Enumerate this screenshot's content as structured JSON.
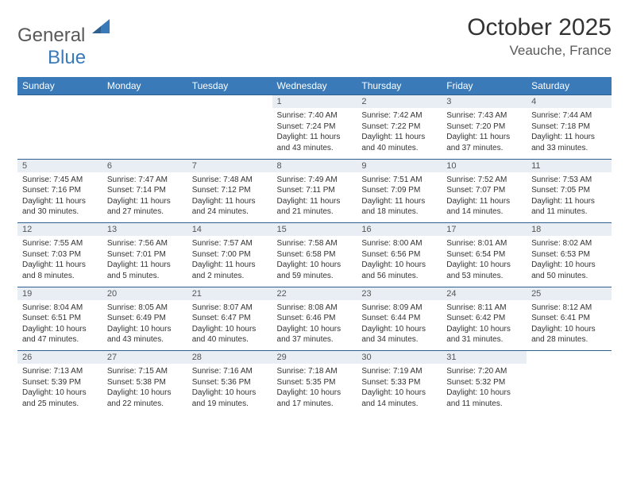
{
  "logo": {
    "text_general": "General",
    "text_blue": "Blue"
  },
  "title": "October 2025",
  "location": "Veauche, France",
  "header_bg": "#3a7ab8",
  "daynum_bg": "#e8eef4",
  "border_color": "#2f5f8f",
  "weekdays": [
    "Sunday",
    "Monday",
    "Tuesday",
    "Wednesday",
    "Thursday",
    "Friday",
    "Saturday"
  ],
  "weeks": [
    {
      "nums": [
        "",
        "",
        "",
        "1",
        "2",
        "3",
        "4"
      ],
      "cells": [
        null,
        null,
        null,
        {
          "sunrise": "Sunrise: 7:40 AM",
          "sunset": "Sunset: 7:24 PM",
          "day1": "Daylight: 11 hours",
          "day2": "and 43 minutes."
        },
        {
          "sunrise": "Sunrise: 7:42 AM",
          "sunset": "Sunset: 7:22 PM",
          "day1": "Daylight: 11 hours",
          "day2": "and 40 minutes."
        },
        {
          "sunrise": "Sunrise: 7:43 AM",
          "sunset": "Sunset: 7:20 PM",
          "day1": "Daylight: 11 hours",
          "day2": "and 37 minutes."
        },
        {
          "sunrise": "Sunrise: 7:44 AM",
          "sunset": "Sunset: 7:18 PM",
          "day1": "Daylight: 11 hours",
          "day2": "and 33 minutes."
        }
      ]
    },
    {
      "nums": [
        "5",
        "6",
        "7",
        "8",
        "9",
        "10",
        "11"
      ],
      "cells": [
        {
          "sunrise": "Sunrise: 7:45 AM",
          "sunset": "Sunset: 7:16 PM",
          "day1": "Daylight: 11 hours",
          "day2": "and 30 minutes."
        },
        {
          "sunrise": "Sunrise: 7:47 AM",
          "sunset": "Sunset: 7:14 PM",
          "day1": "Daylight: 11 hours",
          "day2": "and 27 minutes."
        },
        {
          "sunrise": "Sunrise: 7:48 AM",
          "sunset": "Sunset: 7:12 PM",
          "day1": "Daylight: 11 hours",
          "day2": "and 24 minutes."
        },
        {
          "sunrise": "Sunrise: 7:49 AM",
          "sunset": "Sunset: 7:11 PM",
          "day1": "Daylight: 11 hours",
          "day2": "and 21 minutes."
        },
        {
          "sunrise": "Sunrise: 7:51 AM",
          "sunset": "Sunset: 7:09 PM",
          "day1": "Daylight: 11 hours",
          "day2": "and 18 minutes."
        },
        {
          "sunrise": "Sunrise: 7:52 AM",
          "sunset": "Sunset: 7:07 PM",
          "day1": "Daylight: 11 hours",
          "day2": "and 14 minutes."
        },
        {
          "sunrise": "Sunrise: 7:53 AM",
          "sunset": "Sunset: 7:05 PM",
          "day1": "Daylight: 11 hours",
          "day2": "and 11 minutes."
        }
      ]
    },
    {
      "nums": [
        "12",
        "13",
        "14",
        "15",
        "16",
        "17",
        "18"
      ],
      "cells": [
        {
          "sunrise": "Sunrise: 7:55 AM",
          "sunset": "Sunset: 7:03 PM",
          "day1": "Daylight: 11 hours",
          "day2": "and 8 minutes."
        },
        {
          "sunrise": "Sunrise: 7:56 AM",
          "sunset": "Sunset: 7:01 PM",
          "day1": "Daylight: 11 hours",
          "day2": "and 5 minutes."
        },
        {
          "sunrise": "Sunrise: 7:57 AM",
          "sunset": "Sunset: 7:00 PM",
          "day1": "Daylight: 11 hours",
          "day2": "and 2 minutes."
        },
        {
          "sunrise": "Sunrise: 7:58 AM",
          "sunset": "Sunset: 6:58 PM",
          "day1": "Daylight: 10 hours",
          "day2": "and 59 minutes."
        },
        {
          "sunrise": "Sunrise: 8:00 AM",
          "sunset": "Sunset: 6:56 PM",
          "day1": "Daylight: 10 hours",
          "day2": "and 56 minutes."
        },
        {
          "sunrise": "Sunrise: 8:01 AM",
          "sunset": "Sunset: 6:54 PM",
          "day1": "Daylight: 10 hours",
          "day2": "and 53 minutes."
        },
        {
          "sunrise": "Sunrise: 8:02 AM",
          "sunset": "Sunset: 6:53 PM",
          "day1": "Daylight: 10 hours",
          "day2": "and 50 minutes."
        }
      ]
    },
    {
      "nums": [
        "19",
        "20",
        "21",
        "22",
        "23",
        "24",
        "25"
      ],
      "cells": [
        {
          "sunrise": "Sunrise: 8:04 AM",
          "sunset": "Sunset: 6:51 PM",
          "day1": "Daylight: 10 hours",
          "day2": "and 47 minutes."
        },
        {
          "sunrise": "Sunrise: 8:05 AM",
          "sunset": "Sunset: 6:49 PM",
          "day1": "Daylight: 10 hours",
          "day2": "and 43 minutes."
        },
        {
          "sunrise": "Sunrise: 8:07 AM",
          "sunset": "Sunset: 6:47 PM",
          "day1": "Daylight: 10 hours",
          "day2": "and 40 minutes."
        },
        {
          "sunrise": "Sunrise: 8:08 AM",
          "sunset": "Sunset: 6:46 PM",
          "day1": "Daylight: 10 hours",
          "day2": "and 37 minutes."
        },
        {
          "sunrise": "Sunrise: 8:09 AM",
          "sunset": "Sunset: 6:44 PM",
          "day1": "Daylight: 10 hours",
          "day2": "and 34 minutes."
        },
        {
          "sunrise": "Sunrise: 8:11 AM",
          "sunset": "Sunset: 6:42 PM",
          "day1": "Daylight: 10 hours",
          "day2": "and 31 minutes."
        },
        {
          "sunrise": "Sunrise: 8:12 AM",
          "sunset": "Sunset: 6:41 PM",
          "day1": "Daylight: 10 hours",
          "day2": "and 28 minutes."
        }
      ]
    },
    {
      "nums": [
        "26",
        "27",
        "28",
        "29",
        "30",
        "31",
        ""
      ],
      "cells": [
        {
          "sunrise": "Sunrise: 7:13 AM",
          "sunset": "Sunset: 5:39 PM",
          "day1": "Daylight: 10 hours",
          "day2": "and 25 minutes."
        },
        {
          "sunrise": "Sunrise: 7:15 AM",
          "sunset": "Sunset: 5:38 PM",
          "day1": "Daylight: 10 hours",
          "day2": "and 22 minutes."
        },
        {
          "sunrise": "Sunrise: 7:16 AM",
          "sunset": "Sunset: 5:36 PM",
          "day1": "Daylight: 10 hours",
          "day2": "and 19 minutes."
        },
        {
          "sunrise": "Sunrise: 7:18 AM",
          "sunset": "Sunset: 5:35 PM",
          "day1": "Daylight: 10 hours",
          "day2": "and 17 minutes."
        },
        {
          "sunrise": "Sunrise: 7:19 AM",
          "sunset": "Sunset: 5:33 PM",
          "day1": "Daylight: 10 hours",
          "day2": "and 14 minutes."
        },
        {
          "sunrise": "Sunrise: 7:20 AM",
          "sunset": "Sunset: 5:32 PM",
          "day1": "Daylight: 10 hours",
          "day2": "and 11 minutes."
        },
        null
      ]
    }
  ]
}
